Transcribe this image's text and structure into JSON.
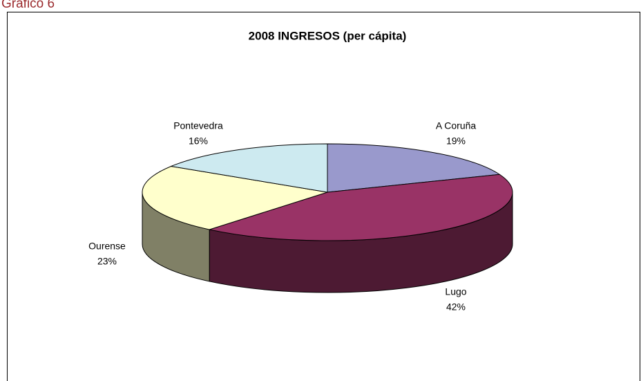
{
  "caption": "Gráfico 6",
  "chart_data": {
    "type": "pie3d",
    "title": "2008 INGRESOS (per cápita)",
    "categories": [
      "A Coruña",
      "Lugo",
      "Ourense",
      "Pontevedra"
    ],
    "values": [
      19,
      42,
      23,
      16
    ],
    "value_labels": [
      "19%",
      "42%",
      "23%",
      "16%"
    ],
    "colors": [
      "#9999cc",
      "#993366",
      "#ffffcc",
      "#cdeaf0"
    ]
  }
}
